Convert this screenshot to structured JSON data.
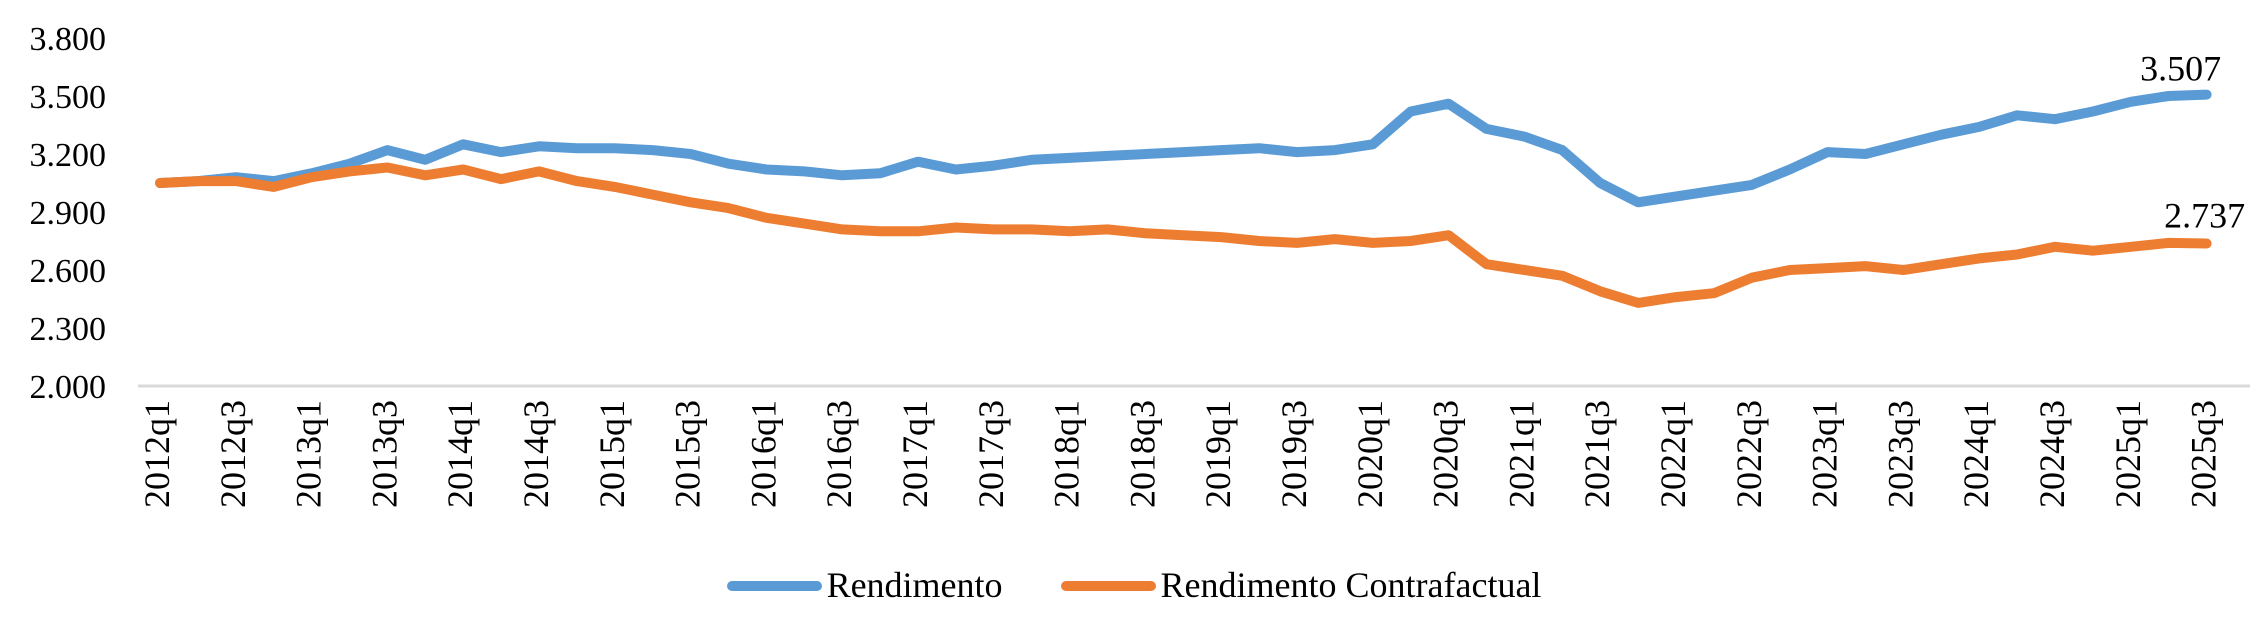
{
  "chart_data": {
    "type": "line",
    "title": "",
    "xlabel": "",
    "ylabel": "",
    "categories": [
      "2012q1",
      "2012q2",
      "2012q3",
      "2012q4",
      "2013q1",
      "2013q2",
      "2013q3",
      "2013q4",
      "2014q1",
      "2014q2",
      "2014q3",
      "2014q4",
      "2015q1",
      "2015q2",
      "2015q3",
      "2015q4",
      "2016q1",
      "2016q2",
      "2016q3",
      "2016q4",
      "2017q1",
      "2017q2",
      "2017q3",
      "2017q4",
      "2018q1",
      "2018q2",
      "2018q3",
      "2018q4",
      "2019q1",
      "2019q2",
      "2019q3",
      "2019q4",
      "2020q1",
      "2020q2",
      "2020q3",
      "2020q4",
      "2021q1",
      "2021q2",
      "2021q3",
      "2021q4",
      "2022q1",
      "2022q2",
      "2022q3",
      "2022q4",
      "2023q1",
      "2023q2",
      "2023q3",
      "2023q4",
      "2024q1",
      "2024q2",
      "2024q3",
      "2024q4",
      "2025q1",
      "2025q2",
      "2025q3"
    ],
    "tick_every": 2,
    "x_tick_labels": [
      "2012q1",
      "2012q3",
      "2013q1",
      "2013q3",
      "2014q1",
      "2014q3",
      "2015q1",
      "2015q3",
      "2016q1",
      "2016q3",
      "2017q1",
      "2017q3",
      "2018q1",
      "2018q3",
      "2019q1",
      "2019q3",
      "2020q1",
      "2020q3",
      "2021q1",
      "2021q3",
      "2022q1",
      "2022q3",
      "2023q1",
      "2023q3",
      "2024q1",
      "2024q3",
      "2025q1",
      "2025q3"
    ],
    "y_ticks": [
      "3.800",
      "3.500",
      "3.200",
      "2.900",
      "2.600",
      "2.300",
      "2.000"
    ],
    "ylim": [
      2.0,
      3.8
    ],
    "grid": "none",
    "legend_position": "bottom-center",
    "axis_color": "#D9D9D9",
    "text_color": "#000000",
    "series": [
      {
        "name": "Rendimento",
        "color": "#5B9BD5",
        "end_label": "3.507",
        "values": [
          3.05,
          3.06,
          3.08,
          3.06,
          3.1,
          3.15,
          3.22,
          3.17,
          3.25,
          3.21,
          3.24,
          3.23,
          3.23,
          3.22,
          3.2,
          3.15,
          3.12,
          3.11,
          3.09,
          3.1,
          3.16,
          3.12,
          3.14,
          3.17,
          3.18,
          3.19,
          3.2,
          3.21,
          3.22,
          3.23,
          3.21,
          3.22,
          3.25,
          3.42,
          3.46,
          3.33,
          3.29,
          3.22,
          3.05,
          2.95,
          2.98,
          3.01,
          3.04,
          3.12,
          3.21,
          3.2,
          3.25,
          3.3,
          3.34,
          3.4,
          3.38,
          3.42,
          3.47,
          3.5,
          3.507
        ]
      },
      {
        "name": "Rendimento Contrafactual",
        "color": "#ED7D31",
        "end_label": "2.737",
        "values": [
          3.05,
          3.06,
          3.06,
          3.03,
          3.08,
          3.11,
          3.13,
          3.09,
          3.12,
          3.07,
          3.11,
          3.06,
          3.03,
          2.99,
          2.95,
          2.92,
          2.87,
          2.84,
          2.81,
          2.8,
          2.8,
          2.82,
          2.81,
          2.81,
          2.8,
          2.81,
          2.79,
          2.78,
          2.77,
          2.75,
          2.74,
          2.76,
          2.74,
          2.75,
          2.78,
          2.63,
          2.6,
          2.57,
          2.49,
          2.43,
          2.46,
          2.48,
          2.56,
          2.6,
          2.61,
          2.62,
          2.6,
          2.63,
          2.66,
          2.68,
          2.72,
          2.7,
          2.72,
          2.74,
          2.737
        ]
      }
    ]
  }
}
